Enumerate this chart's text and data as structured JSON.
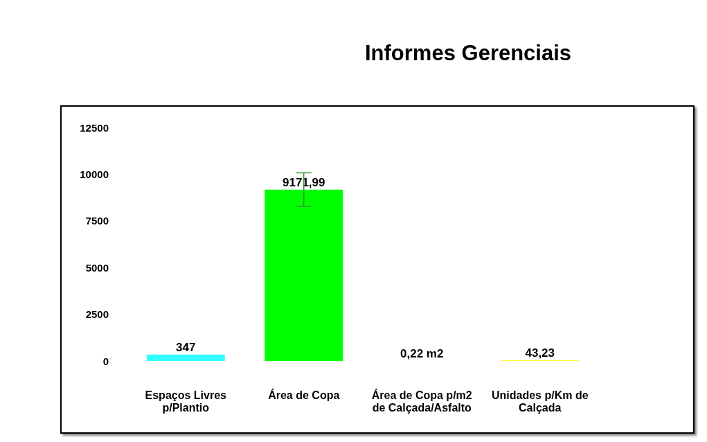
{
  "chart_data": {
    "type": "bar",
    "title": "Informes Gerenciais",
    "categories": [
      "Espaços Livres p/Plantio",
      "Área de Copa",
      "Área de Copa p/m2 de Calçada/Asfalto",
      "Unidades p/Km de Calçada"
    ],
    "values": [
      347,
      9171.99,
      0.22,
      43.23
    ],
    "colors": [
      "#33ffff",
      "#00ff00",
      "#ffaa33",
      "#ffff33"
    ],
    "value_labels": [
      "347",
      "9171,99",
      "0,22 m2",
      "43,23"
    ],
    "errors": [
      null,
      900,
      null,
      null
    ],
    "ylim": [
      0,
      12500
    ],
    "yticks": [
      0,
      2500,
      5000,
      7500,
      10000,
      12500
    ],
    "grid": false
  }
}
